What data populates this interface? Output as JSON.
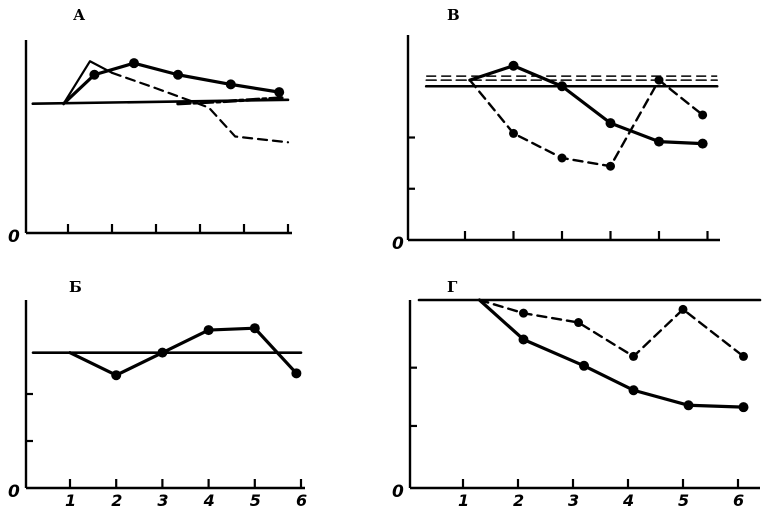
{
  "chart_data": [
    {
      "panel": "А",
      "type": "line",
      "zero_label": "0",
      "x_ticks": [
        1,
        2,
        3,
        4,
        5,
        6
      ],
      "x_tick_labels": [],
      "ylim": [
        0,
        100
      ],
      "series": [
        {
          "style": "solid-thin-baseline",
          "points": [
            [
              0.2,
              67
            ],
            [
              6,
              69
            ]
          ]
        },
        {
          "style": "solid-markers",
          "points": [
            [
              0.9,
              67
            ],
            [
              1.6,
              82
            ],
            [
              2.5,
              88
            ],
            [
              3.5,
              82
            ],
            [
              4.7,
              77
            ],
            [
              5.8,
              73
            ]
          ]
        },
        {
          "style": "solid-thin",
          "points": [
            [
              0.9,
              67
            ],
            [
              1.5,
              89
            ],
            [
              2.0,
              83
            ]
          ]
        },
        {
          "style": "dashed",
          "points": [
            [
              2.0,
              83
            ],
            [
              3.0,
              75
            ],
            [
              4.2,
              65
            ],
            [
              4.8,
              50
            ],
            [
              6.0,
              47
            ]
          ]
        },
        {
          "style": "dash-dot-thick",
          "points": [
            [
              3.5,
              67
            ],
            [
              4.4,
              68
            ],
            [
              5.9,
              70
            ]
          ]
        }
      ]
    },
    {
      "panel": "В",
      "type": "line",
      "zero_label": "0",
      "x_ticks": [
        1,
        2,
        3,
        4,
        5,
        6
      ],
      "x_tick_labels": [],
      "ylim": [
        0,
        100
      ],
      "series": [
        {
          "style": "solid-thin-baseline",
          "points": [
            [
              0.2,
              75
            ],
            [
              6.2,
              75
            ]
          ]
        },
        {
          "style": "double-dashed-baseline",
          "points": [
            [
              0.2,
              78
            ],
            [
              6.2,
              78
            ]
          ]
        },
        {
          "style": "solid-markers",
          "points": [
            [
              1.1,
              78
            ],
            [
              2.0,
              85
            ],
            [
              3.0,
              75
            ],
            [
              4.0,
              57
            ],
            [
              5.0,
              48
            ],
            [
              5.9,
              47
            ]
          ]
        },
        {
          "style": "dashed-markers",
          "points": [
            [
              1.1,
              78
            ],
            [
              2.0,
              52
            ],
            [
              3.0,
              40
            ],
            [
              4.0,
              36
            ],
            [
              5.0,
              78
            ],
            [
              5.9,
              61
            ]
          ]
        }
      ]
    },
    {
      "panel": "Б",
      "type": "line",
      "zero_label": "0",
      "x_ticks": [
        1,
        2,
        3,
        4,
        5,
        6
      ],
      "x_tick_labels": [
        "1",
        "2",
        "3",
        "4",
        "5",
        "6"
      ],
      "ylim": [
        0,
        100
      ],
      "series": [
        {
          "style": "solid-thin-baseline",
          "points": [
            [
              0.2,
              72
            ],
            [
              6.0,
              72
            ]
          ]
        },
        {
          "style": "solid-markers",
          "points": [
            [
              1.0,
              72
            ],
            [
              2.0,
              60
            ],
            [
              3.0,
              72
            ],
            [
              4.0,
              84
            ],
            [
              5.0,
              85
            ],
            [
              5.9,
              61
            ]
          ]
        }
      ]
    },
    {
      "panel": "Г",
      "type": "line",
      "zero_label": "0",
      "x_ticks": [
        1,
        2,
        3,
        4,
        5,
        6
      ],
      "x_tick_labels": [
        "1",
        "2",
        "3",
        "4",
        "5",
        "6"
      ],
      "ylim": [
        0,
        100
      ],
      "series": [
        {
          "style": "solid-thin-baseline",
          "points": [
            [
              0.2,
              100
            ],
            [
              6.4,
              100
            ]
          ]
        },
        {
          "style": "solid-markers",
          "points": [
            [
              1.3,
              100
            ],
            [
              2.1,
              79
            ],
            [
              3.2,
              65
            ],
            [
              4.1,
              52
            ],
            [
              5.1,
              44
            ],
            [
              6.1,
              43
            ]
          ]
        },
        {
          "style": "dashed-markers",
          "points": [
            [
              1.3,
              100
            ],
            [
              2.1,
              93
            ],
            [
              3.1,
              88
            ],
            [
              4.1,
              70
            ],
            [
              5.0,
              95
            ],
            [
              6.1,
              70
            ]
          ]
        }
      ]
    }
  ]
}
